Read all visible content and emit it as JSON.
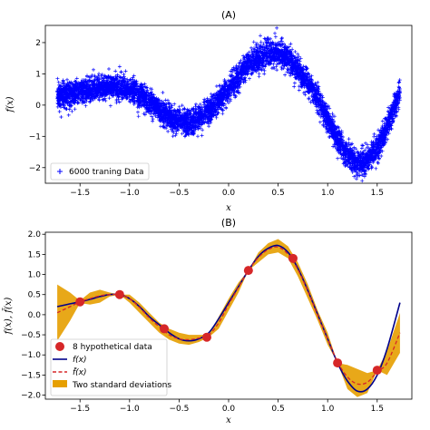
{
  "chart_data": [
    {
      "id": "A",
      "type": "scatter",
      "title": "(A)",
      "xlabel": "x",
      "ylabel": "f(x)",
      "xlim": [
        -1.85,
        1.85
      ],
      "ylim": [
        -2.5,
        2.55
      ],
      "xticks": [
        -1.5,
        -1.0,
        -0.5,
        0.0,
        0.5,
        1.0,
        1.5
      ],
      "yticks": [
        -2,
        -1,
        0,
        1,
        2
      ],
      "grid": false,
      "legend": "lower-left",
      "series": [
        {
          "name": "6000 traning Data",
          "marker": "plus",
          "color": "#0000ff",
          "count": 6000,
          "x_range": [
            -1.73,
            1.73
          ],
          "noise_std": 0.2,
          "underlying_curve": {
            "x": [
              -1.73,
              -1.6,
              -1.4,
              -1.2,
              -1.1,
              -1.0,
              -0.8,
              -0.65,
              -0.5,
              -0.4,
              -0.3,
              -0.2,
              0.0,
              0.2,
              0.4,
              0.5,
              0.6,
              0.8,
              0.9,
              1.0,
              1.1,
              1.2,
              1.3,
              1.4,
              1.5,
              1.6,
              1.73
            ],
            "y": [
              0.3,
              0.35,
              0.5,
              0.6,
              0.6,
              0.5,
              0.1,
              -0.3,
              -0.55,
              -0.6,
              -0.45,
              -0.2,
              0.5,
              1.3,
              1.65,
              1.72,
              1.5,
              0.7,
              0.2,
              -0.45,
              -1.1,
              -1.6,
              -1.85,
              -1.75,
              -1.4,
              -0.7,
              0.4
            ]
          }
        }
      ]
    },
    {
      "id": "B",
      "type": "line",
      "title": "(B)",
      "xlabel": "x",
      "ylabel": "f(x), f̄(x)",
      "xlim": [
        -1.85,
        1.85
      ],
      "ylim": [
        -2.1,
        2.05
      ],
      "xticks": [
        -1.5,
        -1.0,
        -0.5,
        0.0,
        0.5,
        1.0,
        1.5
      ],
      "yticks": [
        -2.0,
        -1.5,
        -1.0,
        -0.5,
        0.0,
        0.5,
        1.0,
        1.5,
        2.0
      ],
      "grid": false,
      "legend": "lower-left",
      "series": [
        {
          "name": "8 hypothetical data",
          "kind": "points",
          "color": "#d62728",
          "x": [
            -1.5,
            -1.1,
            -0.65,
            -0.22,
            0.2,
            0.65,
            1.1,
            1.5
          ],
          "y": [
            0.32,
            0.5,
            -0.35,
            -0.56,
            1.1,
            1.4,
            -1.2,
            -1.38
          ]
        },
        {
          "name": "f(x)",
          "kind": "line",
          "color": "#00008b",
          "x": [
            -1.73,
            -1.6,
            -1.5,
            -1.4,
            -1.3,
            -1.2,
            -1.1,
            -1.0,
            -0.9,
            -0.8,
            -0.7,
            -0.6,
            -0.5,
            -0.4,
            -0.3,
            -0.2,
            -0.1,
            0.0,
            0.1,
            0.2,
            0.3,
            0.4,
            0.5,
            0.6,
            0.7,
            0.8,
            0.9,
            1.0,
            1.1,
            1.2,
            1.3,
            1.4,
            1.5,
            1.6,
            1.73
          ],
          "y": [
            0.2,
            0.27,
            0.32,
            0.38,
            0.45,
            0.5,
            0.5,
            0.4,
            0.2,
            -0.05,
            -0.25,
            -0.45,
            -0.6,
            -0.65,
            -0.6,
            -0.45,
            -0.1,
            0.3,
            0.7,
            1.1,
            1.45,
            1.65,
            1.72,
            1.55,
            1.15,
            0.6,
            0.0,
            -0.6,
            -1.2,
            -1.65,
            -1.9,
            -1.85,
            -1.5,
            -0.85,
            0.3
          ]
        },
        {
          "name": "f̄(x)",
          "kind": "dashed-line",
          "color": "#d62728",
          "x": [
            -1.73,
            -1.6,
            -1.5,
            -1.4,
            -1.3,
            -1.2,
            -1.1,
            -1.0,
            -0.9,
            -0.8,
            -0.7,
            -0.6,
            -0.5,
            -0.4,
            -0.3,
            -0.2,
            -0.1,
            0.0,
            0.1,
            0.2,
            0.3,
            0.4,
            0.5,
            0.6,
            0.7,
            0.8,
            0.9,
            1.0,
            1.1,
            1.2,
            1.3,
            1.4,
            1.5,
            1.6,
            1.73
          ],
          "y": [
            0.05,
            0.2,
            0.32,
            0.4,
            0.47,
            0.5,
            0.5,
            0.4,
            0.18,
            -0.08,
            -0.3,
            -0.5,
            -0.6,
            -0.62,
            -0.58,
            -0.5,
            -0.2,
            0.25,
            0.68,
            1.1,
            1.42,
            1.62,
            1.68,
            1.5,
            1.12,
            0.58,
            -0.02,
            -0.6,
            -1.17,
            -1.55,
            -1.72,
            -1.68,
            -1.42,
            -1.2,
            -0.45
          ]
        },
        {
          "name": "Two standard deviations",
          "kind": "band",
          "color": "#e69f00",
          "x": [
            -1.73,
            -1.6,
            -1.5,
            -1.4,
            -1.3,
            -1.2,
            -1.1,
            -1.0,
            -0.9,
            -0.8,
            -0.7,
            -0.6,
            -0.5,
            -0.4,
            -0.3,
            -0.2,
            -0.1,
            0.0,
            0.1,
            0.2,
            0.3,
            0.4,
            0.5,
            0.6,
            0.7,
            0.8,
            0.9,
            1.0,
            1.1,
            1.2,
            1.3,
            1.4,
            1.5,
            1.6,
            1.73
          ],
          "upper": [
            0.75,
            0.55,
            0.35,
            0.55,
            0.62,
            0.55,
            0.5,
            0.5,
            0.3,
            0.05,
            -0.2,
            -0.35,
            -0.45,
            -0.5,
            -0.5,
            -0.5,
            -0.05,
            0.4,
            0.8,
            1.1,
            1.55,
            1.78,
            1.88,
            1.7,
            1.3,
            0.75,
            0.1,
            -0.45,
            -1.2,
            -1.25,
            -1.35,
            -1.45,
            -1.38,
            -0.9,
            0.05
          ],
          "lower": [
            -0.65,
            -0.15,
            0.29,
            0.25,
            0.3,
            0.45,
            0.5,
            0.3,
            0.05,
            -0.2,
            -0.45,
            -0.62,
            -0.72,
            -0.75,
            -0.68,
            -0.56,
            -0.35,
            0.1,
            0.55,
            1.1,
            1.3,
            1.5,
            1.55,
            1.4,
            0.95,
            0.4,
            -0.15,
            -0.75,
            -1.2,
            -1.85,
            -2.05,
            -1.95,
            -1.38,
            -1.5,
            -0.95
          ]
        }
      ]
    }
  ]
}
